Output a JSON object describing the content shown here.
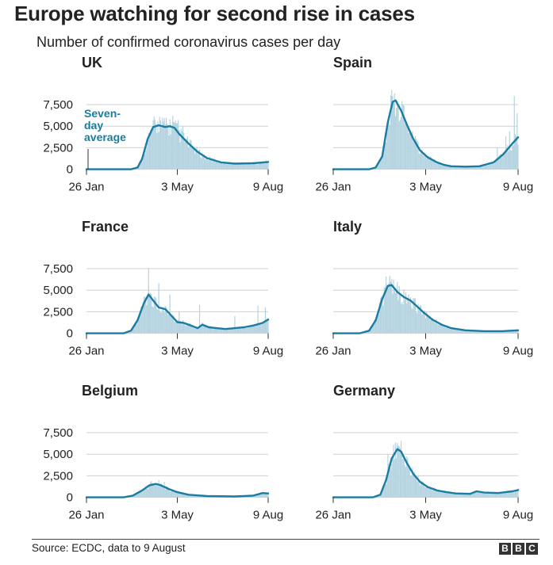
{
  "title": "Europe watching for second rise in cases",
  "subtitle": "Number of confirmed coronavirus cases per day",
  "source": "Source: ECDC, data to 9 August",
  "logo": [
    "B",
    "B",
    "C"
  ],
  "colors": {
    "bar": "#b5d4e1",
    "line": "#1a7ca0",
    "grid": "#d0d0d0",
    "axis": "#333333",
    "text": "#222222"
  },
  "chart_data": [
    {
      "type": "bar+line",
      "title": "UK",
      "ylim": [
        0,
        9000
      ],
      "yticks": [
        0,
        2500,
        5000,
        7500
      ],
      "yticklabels": [
        "0",
        "2,500",
        "5,000",
        "7,500"
      ],
      "xticklabels": [
        "26 Jan",
        "3 May",
        "9 Aug"
      ],
      "xrange": [
        0,
        196
      ],
      "xticks": [
        0,
        98,
        196
      ],
      "annotation": [
        "Seven-",
        "day",
        "average"
      ],
      "avg_keypoints": [
        [
          0,
          0
        ],
        [
          48,
          0
        ],
        [
          55,
          200
        ],
        [
          60,
          1200
        ],
        [
          66,
          3500
        ],
        [
          72,
          4900
        ],
        [
          78,
          5100
        ],
        [
          85,
          4900
        ],
        [
          90,
          5000
        ],
        [
          95,
          4800
        ],
        [
          100,
          4100
        ],
        [
          110,
          3000
        ],
        [
          120,
          2000
        ],
        [
          130,
          1300
        ],
        [
          145,
          800
        ],
        [
          160,
          650
        ],
        [
          180,
          700
        ],
        [
          196,
          850
        ]
      ],
      "spikes": [
        [
          79,
          6100
        ],
        [
          86,
          6000
        ],
        [
          93,
          6200
        ],
        [
          99,
          5700
        ],
        [
          104,
          5000
        ]
      ]
    },
    {
      "type": "bar+line",
      "title": "Spain",
      "ylim": [
        0,
        9000
      ],
      "yticks": [
        0,
        2500,
        5000,
        7500
      ],
      "yticklabels": [
        "",
        "",
        "",
        ""
      ],
      "xticklabels": [
        "26 Jan",
        "3 May",
        "9 Aug"
      ],
      "xrange": [
        0,
        196
      ],
      "xticks": [
        0,
        98,
        196
      ],
      "avg_keypoints": [
        [
          0,
          0
        ],
        [
          38,
          0
        ],
        [
          45,
          200
        ],
        [
          52,
          1500
        ],
        [
          58,
          5500
        ],
        [
          63,
          7800
        ],
        [
          66,
          8000
        ],
        [
          72,
          6800
        ],
        [
          78,
          5200
        ],
        [
          85,
          3500
        ],
        [
          92,
          2200
        ],
        [
          100,
          1400
        ],
        [
          110,
          800
        ],
        [
          118,
          500
        ],
        [
          125,
          350
        ],
        [
          140,
          300
        ],
        [
          155,
          350
        ],
        [
          170,
          800
        ],
        [
          180,
          1700
        ],
        [
          190,
          3000
        ],
        [
          196,
          3700
        ]
      ],
      "spikes": [
        [
          62,
          9200
        ],
        [
          65,
          8800
        ],
        [
          69,
          7500
        ],
        [
          174,
          2500
        ],
        [
          183,
          3800
        ],
        [
          187,
          4400
        ],
        [
          192,
          8500
        ],
        [
          195,
          6500
        ]
      ]
    },
    {
      "type": "bar+line",
      "title": "France",
      "ylim": [
        0,
        9000
      ],
      "yticks": [
        0,
        2500,
        5000,
        7500
      ],
      "yticklabels": [
        "0",
        "2,500",
        "5,000",
        "7,500"
      ],
      "xticklabels": [
        "26 Jan",
        "3 May",
        "9 Aug"
      ],
      "xrange": [
        0,
        196
      ],
      "xticks": [
        0,
        98,
        196
      ],
      "avg_keypoints": [
        [
          0,
          0
        ],
        [
          40,
          0
        ],
        [
          48,
          300
        ],
        [
          55,
          1500
        ],
        [
          62,
          3500
        ],
        [
          67,
          4500
        ],
        [
          72,
          3800
        ],
        [
          78,
          3000
        ],
        [
          85,
          2800
        ],
        [
          92,
          2000
        ],
        [
          98,
          1300
        ],
        [
          105,
          1200
        ],
        [
          115,
          800
        ],
        [
          120,
          600
        ],
        [
          125,
          1000
        ],
        [
          132,
          700
        ],
        [
          140,
          600
        ],
        [
          150,
          500
        ],
        [
          160,
          600
        ],
        [
          170,
          700
        ],
        [
          180,
          900
        ],
        [
          190,
          1200
        ],
        [
          196,
          1600
        ]
      ],
      "spikes": [
        [
          67,
          7600
        ],
        [
          78,
          5800
        ],
        [
          90,
          4500
        ],
        [
          100,
          2500
        ],
        [
          122,
          3300
        ],
        [
          160,
          2000
        ],
        [
          185,
          3200
        ],
        [
          193,
          3000
        ]
      ]
    },
    {
      "type": "bar+line",
      "title": "Italy",
      "ylim": [
        0,
        9000
      ],
      "yticks": [
        0,
        2500,
        5000,
        7500
      ],
      "yticklabels": [
        "",
        "",
        "",
        ""
      ],
      "xticklabels": [
        "26 Jan",
        "3 May",
        "9 Aug"
      ],
      "xrange": [
        0,
        196
      ],
      "xticks": [
        0,
        98,
        196
      ],
      "avg_keypoints": [
        [
          0,
          0
        ],
        [
          28,
          0
        ],
        [
          38,
          300
        ],
        [
          45,
          1500
        ],
        [
          52,
          4000
        ],
        [
          58,
          5500
        ],
        [
          62,
          5600
        ],
        [
          68,
          4800
        ],
        [
          75,
          4200
        ],
        [
          82,
          3800
        ],
        [
          88,
          3200
        ],
        [
          95,
          2500
        ],
        [
          105,
          1600
        ],
        [
          115,
          1000
        ],
        [
          125,
          600
        ],
        [
          140,
          350
        ],
        [
          160,
          250
        ],
        [
          180,
          250
        ],
        [
          196,
          350
        ]
      ],
      "spikes": [
        [
          56,
          6600
        ],
        [
          60,
          6500
        ],
        [
          64,
          6200
        ],
        [
          70,
          5400
        ]
      ]
    },
    {
      "type": "bar+line",
      "title": "Belgium",
      "ylim": [
        0,
        9000
      ],
      "yticks": [
        0,
        2500,
        5000,
        7500
      ],
      "yticklabels": [
        "0",
        "2,500",
        "5,000",
        "7,500"
      ],
      "xticklabels": [
        "26 Jan",
        "3 May",
        "9 Aug"
      ],
      "xrange": [
        0,
        196
      ],
      "xticks": [
        0,
        98,
        196
      ],
      "avg_keypoints": [
        [
          0,
          0
        ],
        [
          40,
          0
        ],
        [
          50,
          200
        ],
        [
          60,
          800
        ],
        [
          68,
          1400
        ],
        [
          75,
          1550
        ],
        [
          80,
          1400
        ],
        [
          88,
          1000
        ],
        [
          98,
          600
        ],
        [
          110,
          300
        ],
        [
          130,
          150
        ],
        [
          160,
          100
        ],
        [
          180,
          200
        ],
        [
          190,
          500
        ],
        [
          196,
          450
        ]
      ],
      "spikes": [
        [
          70,
          1900
        ],
        [
          78,
          2000
        ],
        [
          84,
          1800
        ]
      ]
    },
    {
      "type": "bar+line",
      "title": "Germany",
      "ylim": [
        0,
        9000
      ],
      "yticks": [
        0,
        2500,
        5000,
        7500
      ],
      "yticklabels": [
        "",
        "",
        "",
        ""
      ],
      "xticklabels": [
        "26 Jan",
        "3 May",
        "9 Aug"
      ],
      "xrange": [
        0,
        196
      ],
      "xticks": [
        0,
        98,
        196
      ],
      "avg_keypoints": [
        [
          0,
          0
        ],
        [
          42,
          0
        ],
        [
          50,
          300
        ],
        [
          56,
          2000
        ],
        [
          62,
          4500
        ],
        [
          68,
          5600
        ],
        [
          72,
          5300
        ],
        [
          78,
          4000
        ],
        [
          85,
          2700
        ],
        [
          92,
          1800
        ],
        [
          100,
          1200
        ],
        [
          110,
          800
        ],
        [
          120,
          600
        ],
        [
          130,
          450
        ],
        [
          145,
          400
        ],
        [
          152,
          700
        ],
        [
          160,
          550
        ],
        [
          175,
          500
        ],
        [
          190,
          700
        ],
        [
          196,
          850
        ]
      ],
      "spikes": [
        [
          58,
          5000
        ],
        [
          64,
          6100
        ],
        [
          69,
          6000
        ],
        [
          75,
          4500
        ]
      ]
    }
  ]
}
